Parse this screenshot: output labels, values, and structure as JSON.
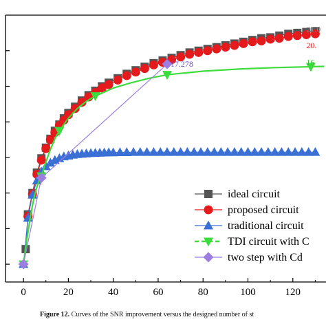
{
  "chart_data": {
    "type": "line",
    "xlim": [
      -8,
      136
    ],
    "ylim": [
      -5,
      10
    ],
    "x_ticks": [
      0,
      20,
      40,
      60,
      80,
      100,
      120
    ],
    "y_ticks": [
      -4,
      -2,
      0,
      2,
      4,
      6,
      8
    ],
    "grid": false,
    "legend_position": "bottom-right",
    "series": [
      {
        "name": "ideal circuit",
        "color": "#555555",
        "marker": "square",
        "x": [
          1,
          2,
          4,
          6,
          8,
          10,
          12,
          14,
          16,
          18,
          20,
          23,
          26,
          29,
          32,
          35,
          38,
          42,
          46,
          50,
          54,
          58,
          62,
          66,
          70,
          74,
          78,
          82,
          86,
          90,
          94,
          98,
          102,
          106,
          110,
          114,
          118,
          122,
          126,
          130
        ],
        "y": [
          -3.15,
          -1.2,
          0.0,
          1.15,
          1.95,
          2.55,
          3.05,
          3.5,
          3.85,
          4.2,
          4.5,
          4.85,
          5.2,
          5.5,
          5.75,
          6.0,
          6.2,
          6.45,
          6.7,
          6.9,
          7.1,
          7.3,
          7.45,
          7.6,
          7.75,
          7.9,
          8.0,
          8.1,
          8.2,
          8.3,
          8.4,
          8.5,
          8.6,
          8.7,
          8.75,
          8.85,
          8.95,
          9.0,
          9.05,
          9.1
        ]
      },
      {
        "name": "proposed circuit",
        "color": "#e41a1c",
        "marker": "circle",
        "x": [
          2,
          4,
          6,
          8,
          10,
          12,
          14,
          16,
          18,
          20,
          23,
          26,
          29,
          32,
          35,
          38,
          42,
          46,
          50,
          54,
          58,
          62,
          66,
          70,
          74,
          78,
          82,
          86,
          90,
          94,
          98,
          102,
          106,
          110,
          114,
          118,
          122,
          126,
          130
        ],
        "y": [
          -1.3,
          -0.05,
          1.05,
          1.85,
          2.5,
          3.0,
          3.4,
          3.8,
          4.1,
          4.4,
          4.75,
          5.1,
          5.4,
          5.65,
          5.9,
          6.1,
          6.35,
          6.6,
          6.8,
          7.0,
          7.2,
          7.35,
          7.5,
          7.65,
          7.8,
          7.9,
          8.0,
          8.1,
          8.2,
          8.3,
          8.4,
          8.5,
          8.55,
          8.65,
          8.7,
          8.8,
          8.85,
          8.9,
          8.95
        ]
      },
      {
        "name": "traditional circuit",
        "color": "#3a6fd6",
        "marker": "triangle",
        "x": [
          0,
          2,
          4,
          6,
          8,
          10,
          12,
          14,
          16,
          18,
          20,
          22,
          24,
          26,
          28,
          30,
          32,
          34,
          36,
          38,
          40,
          43,
          46,
          49,
          52,
          55,
          58,
          61,
          64,
          67,
          70,
          73,
          76,
          79,
          82,
          85,
          88,
          91,
          94,
          97,
          100,
          103,
          106,
          109,
          112,
          115,
          118,
          121,
          124,
          127,
          130
        ],
        "y": [
          -4.0,
          -1.4,
          -0.1,
          0.7,
          1.2,
          1.5,
          1.7,
          1.85,
          1.95,
          2.05,
          2.1,
          2.15,
          2.18,
          2.2,
          2.22,
          2.24,
          2.25,
          2.26,
          2.27,
          2.28,
          2.28,
          2.29,
          2.29,
          2.3,
          2.3,
          2.3,
          2.3,
          2.3,
          2.3,
          2.3,
          2.3,
          2.3,
          2.3,
          2.3,
          2.3,
          2.3,
          2.3,
          2.3,
          2.3,
          2.3,
          2.3,
          2.3,
          2.3,
          2.3,
          2.3,
          2.3,
          2.3,
          2.3,
          2.3,
          2.3,
          2.3
        ]
      },
      {
        "name": "TDI circuit with C",
        "color": "#3ddc3d",
        "marker": "triangle-down",
        "x": [
          0,
          8,
          16,
          32,
          64,
          128
        ],
        "y": [
          -4.0,
          0.95,
          3.5,
          5.45,
          6.65,
          7.1
        ],
        "curve_x": [
          0,
          1,
          2,
          3,
          4,
          5,
          6,
          7,
          8,
          10,
          12,
          14,
          16,
          20,
          24,
          28,
          32,
          40,
          48,
          56,
          64,
          80,
          96,
          112,
          128,
          134
        ],
        "curve_y": [
          -4.0,
          -3.05,
          -2.2,
          -1.4,
          -0.7,
          -0.1,
          0.35,
          0.7,
          0.95,
          1.75,
          2.45,
          3.05,
          3.5,
          4.2,
          4.75,
          5.15,
          5.45,
          5.9,
          6.2,
          6.45,
          6.65,
          6.85,
          6.97,
          7.05,
          7.1,
          7.12
        ]
      },
      {
        "name": "two step with Cd",
        "color": "#9b7ee0",
        "marker": "diamond",
        "x": [
          0,
          8,
          64
        ],
        "y": [
          -4.0,
          0.85,
          7.25
        ]
      }
    ],
    "annotations": [
      {
        "text": "21.0",
        "x": 126,
        "y": 9.2,
        "color": "#888888"
      },
      {
        "text": "20.",
        "x": 126,
        "y": 8.3,
        "color": "#e41a1c"
      },
      {
        "text": "17.278",
        "x": 65.5,
        "y": 7.25,
        "color": "#6a4fc8"
      },
      {
        "text": "16",
        "x": 126,
        "y": 7.35,
        "color": "#2fbf2f"
      }
    ]
  },
  "caption": {
    "label": "Figure 12.",
    "text": "Curves of the SNR improvement versus the designed number of st"
  }
}
